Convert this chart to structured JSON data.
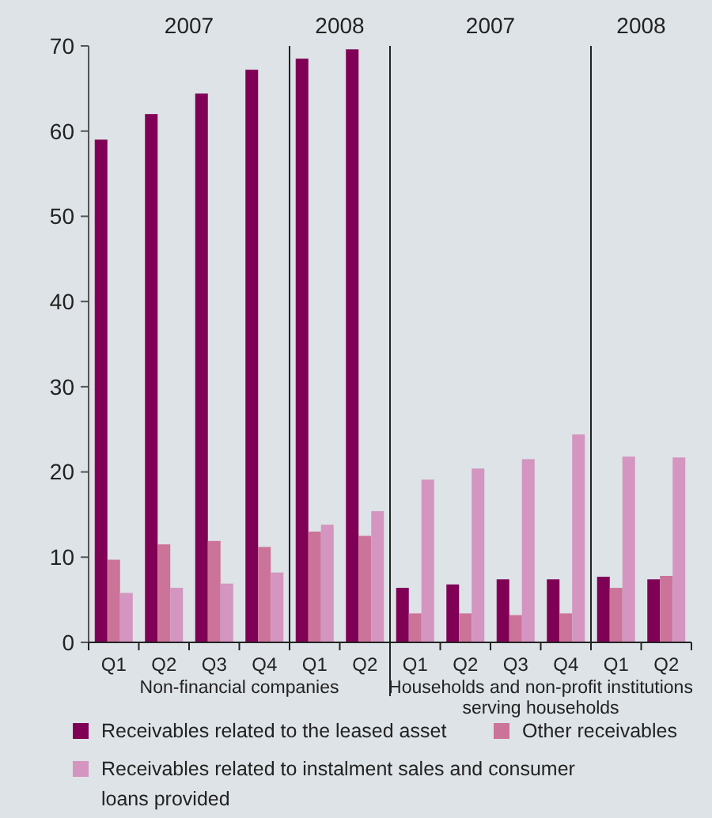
{
  "chart_data": {
    "type": "bar",
    "categories": [
      "Q1",
      "Q2",
      "Q3",
      "Q4",
      "Q1",
      "Q2",
      "Q1",
      "Q2",
      "Q3",
      "Q4",
      "Q1",
      "Q2"
    ],
    "series": [
      {
        "name": "Receivables related to the leased asset",
        "color": "#800055",
        "values": [
          59,
          62,
          64.4,
          67.2,
          68.5,
          69.6,
          6.4,
          6.8,
          7.4,
          7.4,
          7.7,
          7.4
        ]
      },
      {
        "name": "Other receivables",
        "color": "#cc7399",
        "values": [
          9.7,
          11.5,
          11.9,
          11.2,
          13,
          12.5,
          3.4,
          3.4,
          3.2,
          3.4,
          6.4,
          7.8
        ]
      },
      {
        "name": "Receivables related to instalment sales and consumer loans provided",
        "color": "#d495c0",
        "values": [
          5.8,
          6.4,
          6.9,
          8.2,
          13.8,
          15.4,
          19.1,
          20.4,
          21.5,
          24.4,
          21.8,
          21.7
        ]
      }
    ],
    "ylim": [
      0,
      70
    ],
    "yticks": [
      0,
      10,
      20,
      30,
      40,
      50,
      60,
      70
    ],
    "grid": false,
    "legend": "bottom",
    "annotations": [
      "2007",
      "2008",
      "2007",
      "2008",
      "Non-financial companies",
      "Households and non-profit institutions serving households"
    ]
  }
}
